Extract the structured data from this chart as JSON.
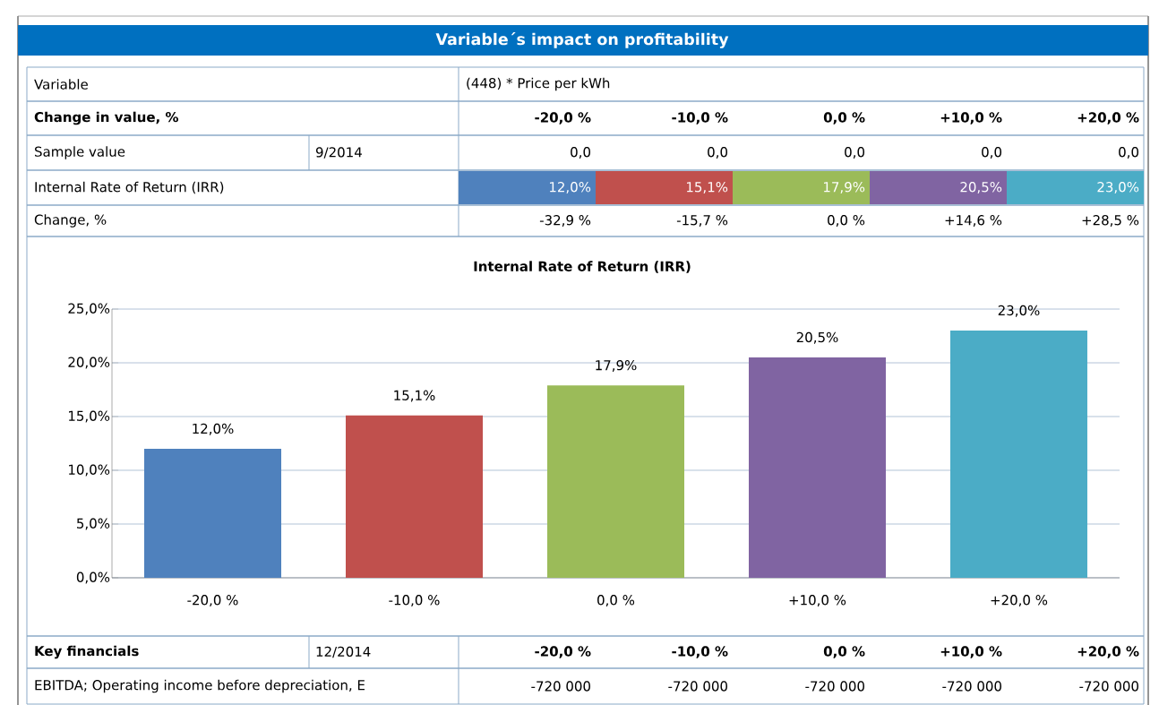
{
  "chart_data": [
    {
      "type": "other",
      "title": "Variable´s impact on profitability",
      "annotations": [
        "Variable",
        "(448) * Price per kWh",
        "Change in value, %",
        "-20,0 %",
        "-10,0 %",
        "0,0 %",
        "+10,0 %",
        "+20,0 %",
        "Sample value",
        "9/2014",
        "0,0",
        "0,0",
        "0,0",
        "0,0",
        "0,0",
        "Internal Rate of Return (IRR)",
        "12,0%",
        "15,1%",
        "17,9%",
        "20,5%",
        "23,0%",
        "Change, %",
        "-32,9 %",
        "-15,7 %",
        "0,0 %",
        "+14,6 %",
        "+28,5 %"
      ]
    },
    {
      "type": "bar",
      "title": "Internal Rate of Return (IRR)",
      "categories": [
        "-20,0 %",
        "-10,0 %",
        "0,0 %",
        "+10,0 %",
        "+20,0 %"
      ],
      "values": [
        12.0,
        15.1,
        17.9,
        20.5,
        23.0
      ],
      "colors": [
        "#4f81bd",
        "#c0504d",
        "#9bbb59",
        "#8064a2",
        "#4bacc6"
      ],
      "value_labels": [
        "12,0%",
        "15,1%",
        "17,9%",
        "20,5%",
        "23,0%"
      ],
      "ylim": [
        0,
        25
      ],
      "yticks": [
        {
          "value": 0,
          "label": "0,0%"
        },
        {
          "value": 5,
          "label": "5,0%"
        },
        {
          "value": 10,
          "label": "10,0%"
        },
        {
          "value": 15,
          "label": "15,0%"
        },
        {
          "value": 20,
          "label": "20,0%"
        },
        {
          "value": 25,
          "label": "25,0%"
        }
      ],
      "grid": "y"
    },
    {
      "type": "other",
      "annotations": [
        "Key financials",
        "12/2014",
        "-20,0 %",
        "-10,0 %",
        "0,0 %",
        "+10,0 %",
        "+20,0 %",
        "EBITDA; Operating income before depreciation, E",
        "-720 000",
        "-720 000",
        "-720 000",
        "-720 000",
        "-720 000"
      ]
    }
  ]
}
